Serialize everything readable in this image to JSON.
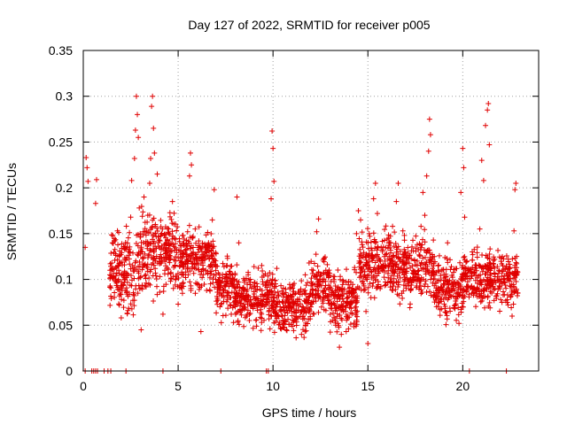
{
  "chart_data": {
    "type": "scatter",
    "title": "Day 127 of 2022, SRMTID for receiver p005",
    "xlabel": "GPS time / hours",
    "ylabel": "SRMTID / TECUs",
    "xlim": [
      0,
      24
    ],
    "ylim": [
      0,
      0.35
    ],
    "xticks": [
      0,
      5,
      10,
      15,
      20
    ],
    "xtick_labels": [
      "0",
      "5",
      "10",
      "15",
      "20"
    ],
    "yticks": [
      0,
      0.05,
      0.1,
      0.15,
      0.2,
      0.25,
      0.3,
      0.35
    ],
    "ytick_labels": [
      "0",
      "0.05",
      "0.1",
      "0.15",
      "0.2",
      "0.25",
      "0.3",
      "0.35"
    ],
    "grid": true,
    "marker": "plus",
    "color": "#e00000",
    "series": [
      {
        "name": "SRMTID",
        "points": [
          [
            0.1,
            0.135
          ],
          [
            0.15,
            0.233
          ],
          [
            0.2,
            0.222
          ],
          [
            0.25,
            0.207
          ],
          [
            0.65,
            0.183
          ],
          [
            0.7,
            0.209
          ],
          [
            1.4,
            0.105
          ],
          [
            1.5,
            0.118
          ],
          [
            1.55,
            0.148
          ],
          [
            1.65,
            0.142
          ],
          [
            1.7,
            0.128
          ],
          [
            1.75,
            0.096
          ],
          [
            1.8,
            0.153
          ],
          [
            1.9,
            0.072
          ],
          [
            2.0,
            0.058
          ],
          [
            2.05,
            0.088
          ],
          [
            2.2,
            0.122
          ],
          [
            2.3,
            0.135
          ],
          [
            2.35,
            0.066
          ],
          [
            2.5,
            0.168
          ],
          [
            2.55,
            0.208
          ],
          [
            2.6,
            0.115
          ],
          [
            2.7,
            0.232
          ],
          [
            2.75,
            0.263
          ],
          [
            2.8,
            0.3
          ],
          [
            2.85,
            0.28
          ],
          [
            2.9,
            0.255
          ],
          [
            2.95,
            0.178
          ],
          [
            3.0,
            0.15
          ],
          [
            3.05,
            0.045
          ],
          [
            3.1,
            0.13
          ],
          [
            3.2,
            0.19
          ],
          [
            3.3,
            0.105
          ],
          [
            3.4,
            0.17
          ],
          [
            3.5,
            0.205
          ],
          [
            3.55,
            0.232
          ],
          [
            3.6,
            0.289
          ],
          [
            3.65,
            0.3
          ],
          [
            3.7,
            0.265
          ],
          [
            3.75,
            0.238
          ],
          [
            3.8,
            0.16
          ],
          [
            3.9,
            0.215
          ],
          [
            4.0,
            0.143
          ],
          [
            4.1,
            0.118
          ],
          [
            4.2,
            0.062
          ],
          [
            4.3,
            0.11
          ],
          [
            4.4,
            0.132
          ],
          [
            4.5,
            0.155
          ],
          [
            4.6,
            0.098
          ],
          [
            4.7,
            0.185
          ],
          [
            4.8,
            0.145
          ],
          [
            5.0,
            0.073
          ],
          [
            5.1,
            0.115
          ],
          [
            5.2,
            0.09
          ],
          [
            5.3,
            0.128
          ],
          [
            5.4,
            0.108
          ],
          [
            5.5,
            0.152
          ],
          [
            5.6,
            0.213
          ],
          [
            5.65,
            0.238
          ],
          [
            5.7,
            0.225
          ],
          [
            5.8,
            0.123
          ],
          [
            5.9,
            0.155
          ],
          [
            6.0,
            0.095
          ],
          [
            6.1,
            0.133
          ],
          [
            6.2,
            0.043
          ],
          [
            6.3,
            0.118
          ],
          [
            6.5,
            0.088
          ],
          [
            6.6,
            0.14
          ],
          [
            6.7,
            0.115
          ],
          [
            6.8,
            0.165
          ],
          [
            6.9,
            0.198
          ],
          [
            7.0,
            0.128
          ],
          [
            7.2,
            0.102
          ],
          [
            7.4,
            0.076
          ],
          [
            7.6,
            0.123
          ],
          [
            7.8,
            0.062
          ],
          [
            8.0,
            0.105
          ],
          [
            8.1,
            0.19
          ],
          [
            8.2,
            0.14
          ],
          [
            8.4,
            0.085
          ],
          [
            8.6,
            0.06
          ],
          [
            8.8,
            0.097
          ],
          [
            9.0,
            0.114
          ],
          [
            9.2,
            0.072
          ],
          [
            9.4,
            0.053
          ],
          [
            9.6,
            0.083
          ],
          [
            9.8,
            0.066
          ],
          [
            9.9,
            0.188
          ],
          [
            9.95,
            0.262
          ],
          [
            10.0,
            0.243
          ],
          [
            10.05,
            0.207
          ],
          [
            10.2,
            0.112
          ],
          [
            10.3,
            0.082
          ],
          [
            10.5,
            0.06
          ],
          [
            10.7,
            0.045
          ],
          [
            10.9,
            0.091
          ],
          [
            11.1,
            0.055
          ],
          [
            11.3,
            0.073
          ],
          [
            11.5,
            0.04
          ],
          [
            11.7,
            0.105
          ],
          [
            11.9,
            0.118
          ],
          [
            12.1,
            0.088
          ],
          [
            12.3,
            0.152
          ],
          [
            12.4,
            0.166
          ],
          [
            12.5,
            0.098
          ],
          [
            12.7,
            0.08
          ],
          [
            12.9,
            0.108
          ],
          [
            13.1,
            0.068
          ],
          [
            13.3,
            0.05
          ],
          [
            13.5,
            0.026
          ],
          [
            13.6,
            0.04
          ],
          [
            13.7,
            0.065
          ],
          [
            13.9,
            0.085
          ],
          [
            14.1,
            0.097
          ],
          [
            14.3,
            0.113
          ],
          [
            14.4,
            0.15
          ],
          [
            14.5,
            0.175
          ],
          [
            14.7,
            0.138
          ],
          [
            14.9,
            0.065
          ],
          [
            15.0,
            0.03
          ],
          [
            15.2,
            0.108
          ],
          [
            15.3,
            0.188
          ],
          [
            15.4,
            0.205
          ],
          [
            15.5,
            0.172
          ],
          [
            15.7,
            0.135
          ],
          [
            15.9,
            0.12
          ],
          [
            16.1,
            0.145
          ],
          [
            16.3,
            0.158
          ],
          [
            16.5,
            0.185
          ],
          [
            16.6,
            0.205
          ],
          [
            16.8,
            0.112
          ],
          [
            17.0,
            0.093
          ],
          [
            17.2,
            0.126
          ],
          [
            17.4,
            0.102
          ],
          [
            17.6,
            0.138
          ],
          [
            17.8,
            0.158
          ],
          [
            17.9,
            0.195
          ],
          [
            18.0,
            0.17
          ],
          [
            18.1,
            0.213
          ],
          [
            18.2,
            0.24
          ],
          [
            18.25,
            0.275
          ],
          [
            18.3,
            0.258
          ],
          [
            18.4,
            0.112
          ],
          [
            18.6,
            0.085
          ],
          [
            18.8,
            0.067
          ],
          [
            19.0,
            0.099
          ],
          [
            19.2,
            0.14
          ],
          [
            19.4,
            0.114
          ],
          [
            19.6,
            0.072
          ],
          [
            19.8,
            0.052
          ],
          [
            19.9,
            0.195
          ],
          [
            20.0,
            0.243
          ],
          [
            20.05,
            0.222
          ],
          [
            20.1,
            0.168
          ],
          [
            20.3,
            0.11
          ],
          [
            20.5,
            0.13
          ],
          [
            20.7,
            0.088
          ],
          [
            20.9,
            0.155
          ],
          [
            21.0,
            0.23
          ],
          [
            21.1,
            0.208
          ],
          [
            21.2,
            0.268
          ],
          [
            21.3,
            0.285
          ],
          [
            21.35,
            0.292
          ],
          [
            21.4,
            0.247
          ],
          [
            21.5,
            0.112
          ],
          [
            21.7,
            0.09
          ],
          [
            21.9,
            0.11
          ],
          [
            22.0,
            0.078
          ],
          [
            22.2,
            0.097
          ],
          [
            22.4,
            0.122
          ],
          [
            22.6,
            0.06
          ],
          [
            22.7,
            0.153
          ],
          [
            22.75,
            0.198
          ],
          [
            22.8,
            0.205
          ],
          [
            22.85,
            0.105
          ],
          [
            22.9,
            0.085
          ]
        ]
      }
    ],
    "zero_points": [
      0.1,
      0.45,
      0.55,
      0.65,
      0.75,
      1.1,
      1.3,
      1.45,
      2.25,
      4.2,
      7.25,
      9.65,
      9.75,
      20.35,
      22.3
    ],
    "band": {
      "description": "dense noise band",
      "y_center": 0.1,
      "segments": [
        [
          1.4,
          3.0,
          0.11,
          0.03
        ],
        [
          3.0,
          5.0,
          0.13,
          0.03
        ],
        [
          5.0,
          7.0,
          0.12,
          0.025
        ],
        [
          7.0,
          8.0,
          0.09,
          0.022
        ],
        [
          8.0,
          10.0,
          0.08,
          0.02
        ],
        [
          10.0,
          12.0,
          0.07,
          0.02
        ],
        [
          12.0,
          13.0,
          0.095,
          0.022
        ],
        [
          13.0,
          14.5,
          0.075,
          0.022
        ],
        [
          14.5,
          16.5,
          0.12,
          0.025
        ],
        [
          16.5,
          18.5,
          0.11,
          0.025
        ],
        [
          18.5,
          20.0,
          0.09,
          0.022
        ],
        [
          20.0,
          22.9,
          0.1,
          0.022
        ]
      ]
    }
  }
}
